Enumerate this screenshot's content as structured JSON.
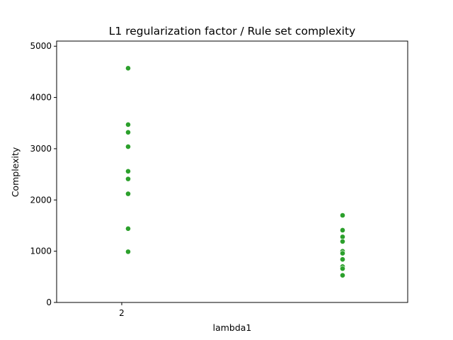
{
  "chart_data": {
    "type": "scatter",
    "title": "L1 regularization factor / Rule set complexity",
    "xlabel": "lambda1",
    "ylabel": "Complexity",
    "x_tick_labels": [
      "2"
    ],
    "y_ticks": [
      0,
      1000,
      2000,
      3000,
      4000,
      5000
    ],
    "ylim": [
      0,
      5100
    ],
    "grid": false,
    "point_color": "#2ca02c",
    "series": [
      {
        "category_index": 0,
        "values": [
          4570,
          3470,
          3320,
          3040,
          2560,
          2410,
          2120,
          1440,
          990
        ]
      },
      {
        "category_index": 1,
        "values": [
          1700,
          1410,
          1280,
          1190,
          1000,
          960,
          840,
          700,
          660,
          530
        ]
      }
    ]
  }
}
